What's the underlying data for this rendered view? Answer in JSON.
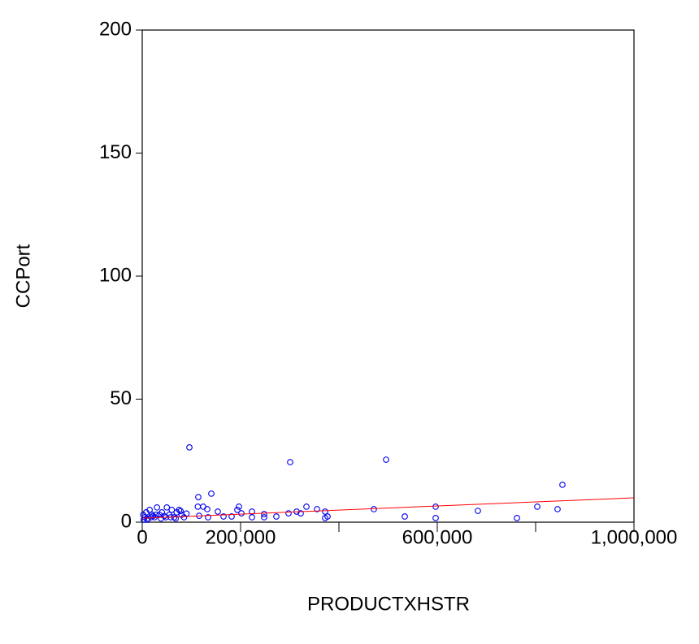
{
  "chart_data": {
    "type": "scatter",
    "xlabel": "PRODUCTXHSTR",
    "ylabel": "CCPort",
    "xlim": [
      0,
      1000000
    ],
    "ylim": [
      0,
      200
    ],
    "xticks": [
      0,
      {
        "value": 200000,
        "label": "200,000"
      },
      {
        "value": 600000,
        "label": "600,000"
      },
      {
        "value": 1000000,
        "label": "1,000,000"
      }
    ],
    "xminorticks": [
      400000,
      800000
    ],
    "yticks": [
      0,
      50,
      100,
      150,
      200
    ],
    "series": [
      {
        "type": "scatter",
        "color": "#0000ee",
        "x": [
          95900,
          300800,
          495900,
          854500,
          140500,
          114000,
          471000,
          533900,
          596700,
          596700,
          682600,
          762000,
          803300,
          844600,
          333900,
          355400,
          371900,
          376900,
          371900,
          322300,
          314000,
          297500,
          272700,
          247900,
          247900,
          223100,
          223100,
          201700,
          196700,
          193400,
          181800,
          165300,
          153700,
          132200,
          124000,
          113000,
          115700,
          133900,
          2000,
          5000,
          8000,
          12000,
          15000,
          20000,
          25000,
          30000,
          35000,
          40000,
          45000,
          50000,
          55000,
          60000,
          65000,
          70000,
          75000,
          80000,
          85000,
          90000,
          10000,
          18000,
          28000,
          38000,
          48000,
          58000,
          68000,
          78000,
          3000,
          22000
        ],
        "values": [
          30.4,
          24.4,
          25.4,
          15.2,
          11.6,
          10.2,
          5.3,
          2.3,
          6.3,
          1.7,
          4.6,
          1.7,
          6.3,
          5.3,
          6.3,
          5.3,
          4.3,
          2.3,
          1.7,
          3.6,
          4.3,
          3.6,
          2.3,
          3.3,
          2.0,
          4.3,
          2.0,
          3.6,
          6.3,
          5.0,
          2.3,
          2.3,
          4.3,
          5.3,
          6.3,
          6.3,
          2.6,
          2.0,
          3,
          2,
          4,
          1.5,
          5,
          3,
          2,
          6,
          3,
          4,
          2.5,
          6,
          3,
          5,
          2,
          4,
          5,
          3,
          2,
          3.5,
          1,
          2,
          3,
          1.5,
          2,
          2,
          1.5,
          4.5,
          1,
          2.5
        ]
      },
      {
        "type": "line",
        "color": "#ff0000",
        "x": [
          0,
          1000000
        ],
        "values": [
          1.6,
          9.9
        ]
      }
    ]
  }
}
